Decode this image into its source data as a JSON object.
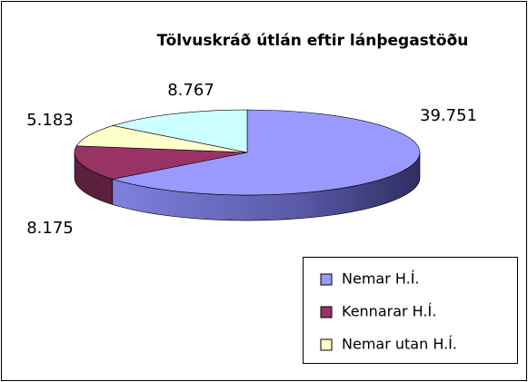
{
  "chart_data": {
    "type": "pie",
    "title": "Tölvuskráð útlán eftir lánþegastöðu",
    "categories": [
      "Nemar H.Í.",
      "Kennarar H.Í.",
      "Nemar utan H.Í.",
      null
    ],
    "values": [
      39751,
      8175,
      5183,
      8767
    ],
    "value_labels": [
      "39.751",
      "8.175",
      "5.183",
      "8.767"
    ],
    "colors": [
      "#9999ff",
      "#993366",
      "#ffffcc",
      "#ccffff"
    ],
    "legend": "bottom-right"
  }
}
